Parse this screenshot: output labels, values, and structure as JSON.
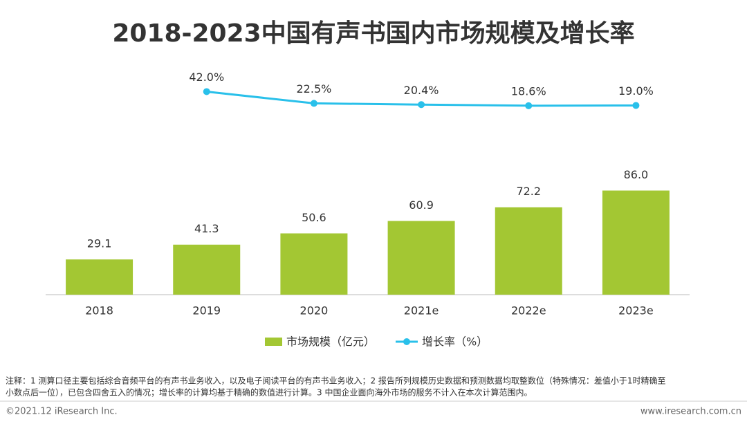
{
  "chart_data": {
    "type": "bar-line",
    "title": "2018-2023中国有声书国内市场规模及增长率",
    "categories": [
      "2018",
      "2019",
      "2020",
      "2021e",
      "2022e",
      "2023e"
    ],
    "series": [
      {
        "name": "市场规模（亿元）",
        "type": "bar",
        "color": "#a3c733",
        "values": [
          29.1,
          41.3,
          50.6,
          60.9,
          72.2,
          86.0
        ],
        "value_labels": [
          "29.1",
          "41.3",
          "50.6",
          "60.9",
          "72.2",
          "86.0"
        ]
      },
      {
        "name": "增长率（%）",
        "type": "line",
        "axis": "y2",
        "color": "#29c0ea",
        "values": [
          null,
          42.0,
          22.5,
          20.4,
          18.6,
          19.0
        ],
        "value_labels": [
          null,
          "42.0%",
          "22.5%",
          "20.4%",
          "18.6%",
          "19.0%"
        ]
      }
    ],
    "ylim": [
      0,
      100
    ],
    "y2lim": [
      0,
      50
    ]
  },
  "notes": [
    "注释：1 测算口径主要包括综合音频平台的有声书业务收入，以及电子阅读平台的有声书业务收入；2 报告所列规模历史数据和预测数据均取整数位（特殊情况：差值小于1时精确至",
    "小数点后一位），已包含四舍五入的情况；增长率的计算均基于精确的数值进行计算。3 中国企业面向海外市场的服务不计入在本次计算范围内。"
  ],
  "source": "©2021.12 iResearch Inc.",
  "website": "www.iresearch.com.cn"
}
